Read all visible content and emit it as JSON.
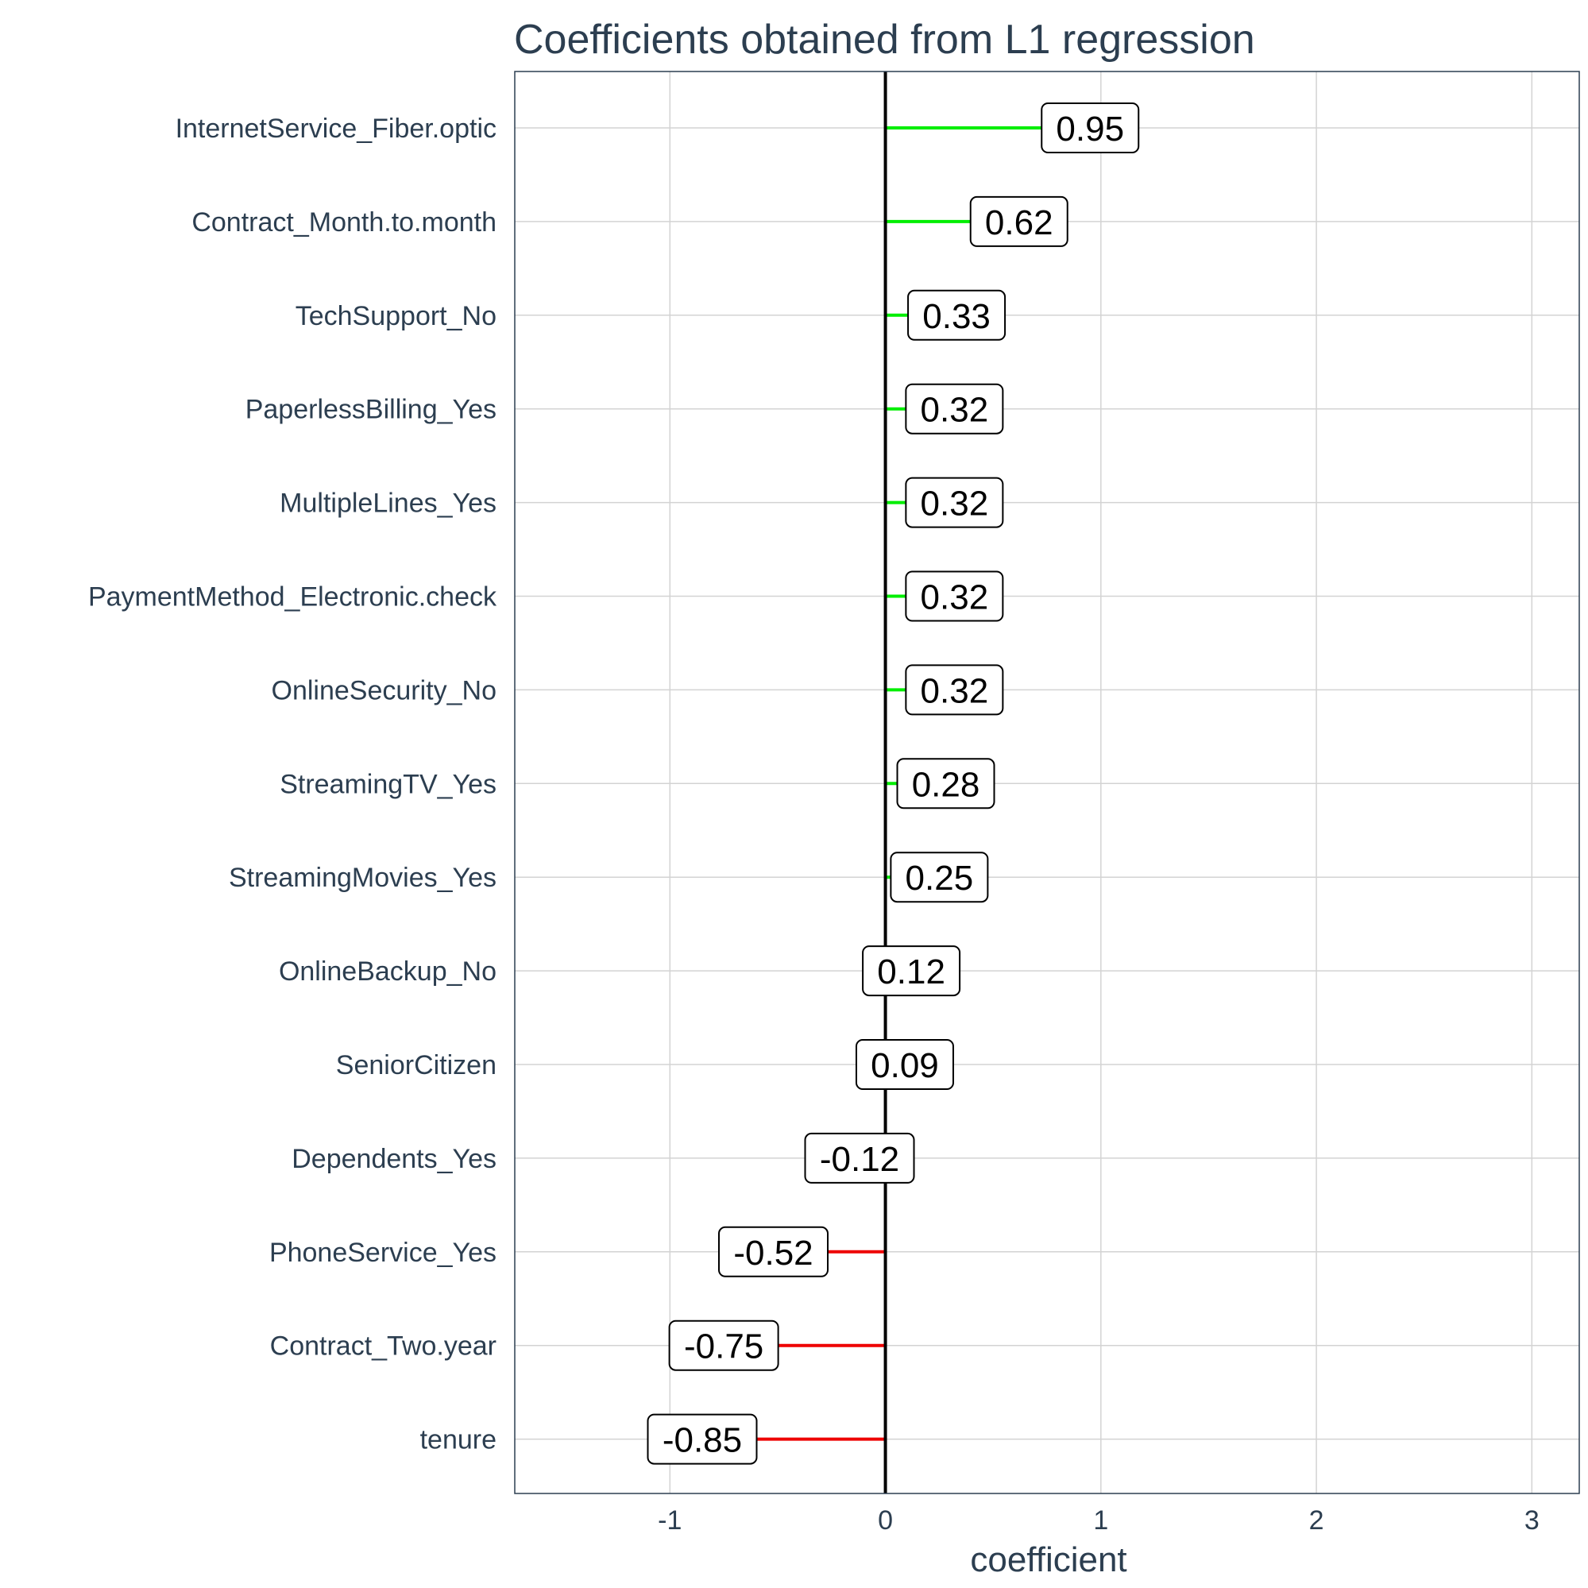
{
  "chart_data": {
    "type": "bar",
    "title": "Coefficients obtained from L1 regression",
    "xlabel": "coefficient",
    "ylabel": "",
    "xlim": [
      -1.72,
      3.22
    ],
    "x_ticks": [
      -1,
      0,
      1,
      2,
      3
    ],
    "x_tick_labels": [
      "-1",
      "0",
      "1",
      "2",
      "3"
    ],
    "grid": true,
    "colors": {
      "positive": "#00ee00",
      "negative": "#ee0000",
      "zero_line": "#000000",
      "grid": "#d3d3d3",
      "text": "#2c3e50",
      "frame": "#2c3e50"
    },
    "categories": [
      "InternetService_Fiber.optic",
      "Contract_Month.to.month",
      "TechSupport_No",
      "PaperlessBilling_Yes",
      "MultipleLines_Yes",
      "PaymentMethod_Electronic.check",
      "OnlineSecurity_No",
      "StreamingTV_Yes",
      "StreamingMovies_Yes",
      "OnlineBackup_No",
      "SeniorCitizen",
      "Dependents_Yes",
      "PhoneService_Yes",
      "Contract_Two.year",
      "tenure"
    ],
    "values": [
      0.95,
      0.62,
      0.33,
      0.32,
      0.32,
      0.32,
      0.32,
      0.28,
      0.25,
      0.12,
      0.09,
      -0.12,
      -0.52,
      -0.75,
      -0.85
    ],
    "labels": [
      "0.95",
      "0.62",
      "0.33",
      "0.32",
      "0.32",
      "0.32",
      "0.32",
      "0.28",
      "0.25",
      "0.12",
      "0.09",
      "-0.12",
      "-0.52",
      "-0.75",
      "-0.85"
    ]
  }
}
